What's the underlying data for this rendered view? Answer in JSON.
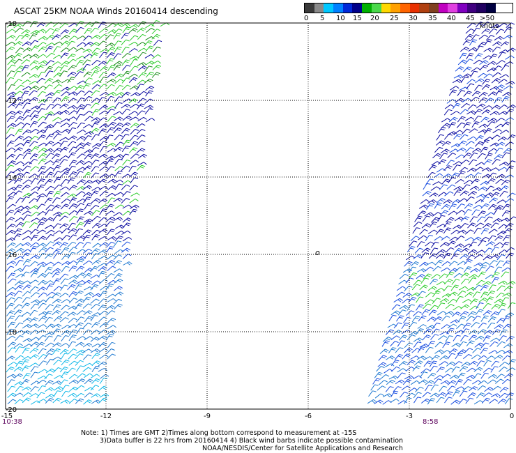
{
  "title": "ASCAT 25KM NOAA Winds 20160414 descending",
  "legend": {
    "colors": [
      "#3a3a3a",
      "#8a8a8a",
      "#00c8ff",
      "#0080ff",
      "#0028d8",
      "#00008a",
      "#00b000",
      "#4ad84a",
      "#ffd800",
      "#ffa000",
      "#ff6400",
      "#e83000",
      "#b04010",
      "#804020",
      "#c000c0",
      "#e040e0",
      "#8000c0",
      "#400080",
      "#200060",
      "#000040"
    ],
    "labels": [
      "0",
      "5",
      "10",
      "15",
      "20",
      "25",
      "30",
      "35",
      "40",
      "45",
      ">50 knots"
    ],
    "unit": "knots"
  },
  "axes": {
    "x_ticks": [
      "-15",
      "-12",
      "-9",
      "-6",
      "-3",
      "0"
    ],
    "y_ticks": [
      "-10",
      "-12",
      "-14",
      "-16",
      "-18",
      "-20"
    ]
  },
  "times": {
    "left": "10:38",
    "right": "8:58"
  },
  "note": {
    "line1": "Note: 1) Times are GMT 2)Times along bottom correspond to measurement at -15S",
    "line2": "3)Data buffer is 22 hrs from 20160414 4) Black wind barbs indicate possible contamination",
    "line3": "NOAA/NESDIS/Center for Satellite Applications and Research"
  },
  "wind_colors": {
    "green": "#2ecc2e",
    "dark_green": "#188a18",
    "navy": "#0a0aa0",
    "blue": "#1a4ee0",
    "steel_blue": "#1e78d0",
    "cyan": "#10b8e8"
  }
}
